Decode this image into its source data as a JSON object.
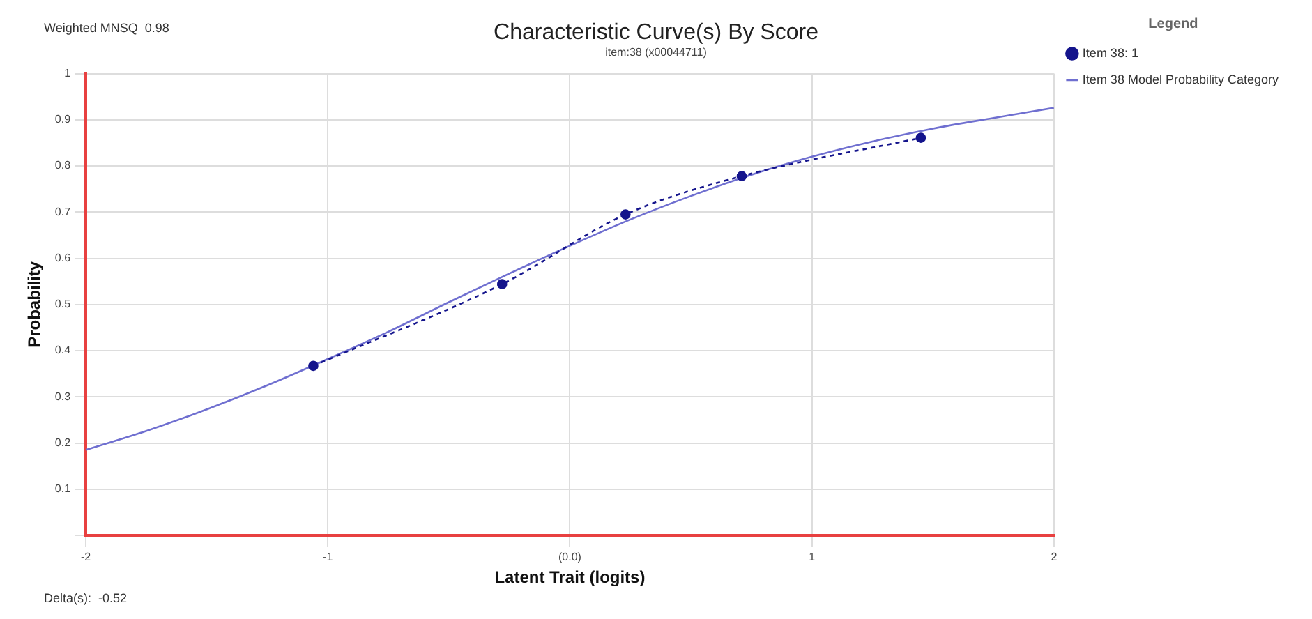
{
  "chart_data": {
    "type": "line",
    "title": "Characteristic Curve(s) By Score",
    "subtitle": "item:38 (x00044711)",
    "xlabel": "Latent Trait (logits)",
    "ylabel": "Probability",
    "legend_title": "Legend",
    "annotations": [
      "Weighted MNSQ  0.98",
      "Delta(s):  -0.52"
    ],
    "series": [
      {
        "name": "Item 38: 1",
        "color": "#14148c",
        "line_style": "dashed",
        "marker": "circle",
        "x": [
          -1.06,
          -0.28,
          0.23,
          0.71,
          1.45
        ],
        "values": [
          0.367,
          0.544,
          0.695,
          0.778,
          0.861
        ]
      },
      {
        "name": "Item 38 Model Probability Category",
        "color": "#6f6fd0",
        "line_style": "solid",
        "marker": "none",
        "x": [
          -2,
          -1.75,
          -1.5,
          -1.25,
          -1,
          -0.75,
          -0.5,
          -0.25,
          0,
          0.25,
          0.5,
          0.75,
          1,
          1.25,
          1.5,
          1.75,
          2
        ],
        "values": [
          0.185,
          0.226,
          0.273,
          0.325,
          0.382,
          0.441,
          0.505,
          0.567,
          0.627,
          0.684,
          0.735,
          0.781,
          0.82,
          0.853,
          0.881,
          0.904,
          0.926
        ]
      }
    ],
    "xlim": [
      -2,
      2
    ],
    "xticks": [
      -2,
      -1,
      {
        "value": 0,
        "label": "(0.0)"
      },
      1,
      2
    ],
    "ylim": [
      0,
      1
    ],
    "yticks": [
      {
        "value": 0,
        "label": null
      },
      0.1,
      0.2,
      0.3,
      0.4,
      0.5,
      0.6,
      0.7,
      0.8,
      0.9,
      1
    ],
    "grid": true,
    "legend": "top right"
  }
}
